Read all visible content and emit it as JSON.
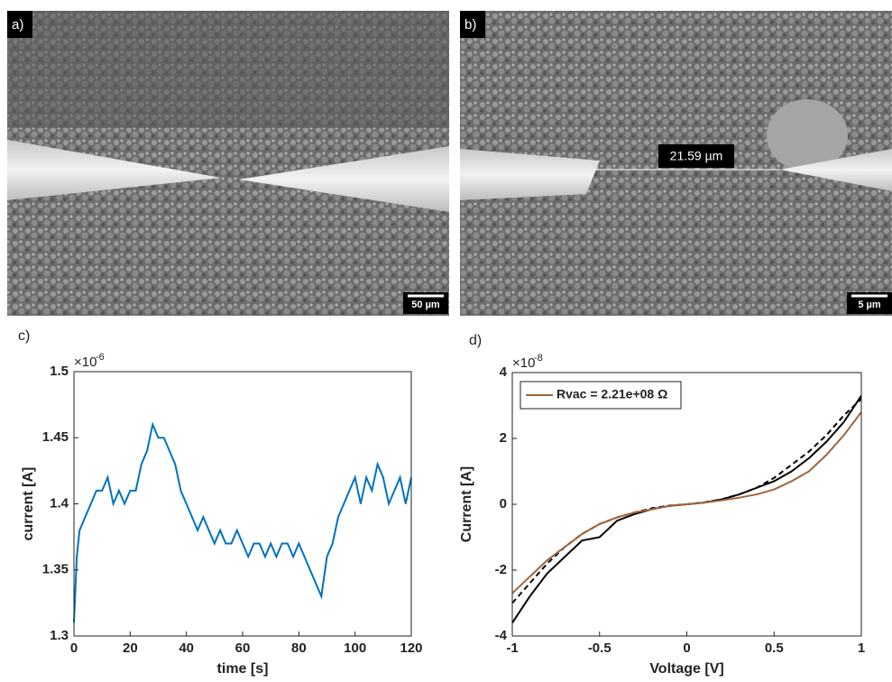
{
  "images": [
    {
      "label": "a)",
      "scale_bar": "50 µm"
    },
    {
      "label": "b)",
      "scale_bar": "5 µm",
      "measurement": "21.59 µm"
    }
  ],
  "chart_data": [
    {
      "type": "line",
      "label": "c)",
      "xlabel": "time [s]",
      "ylabel": "current [A]",
      "y_multiplier": {
        "base": "×10",
        "exponent": "-6"
      },
      "x": [
        0,
        1,
        2,
        4,
        6,
        8,
        10,
        12,
        14,
        16,
        18,
        20,
        22,
        24,
        26,
        28,
        30,
        32,
        34,
        36,
        38,
        40,
        42,
        44,
        46,
        48,
        50,
        52,
        54,
        56,
        58,
        60,
        62,
        64,
        66,
        68,
        70,
        72,
        74,
        76,
        78,
        80,
        82,
        84,
        86,
        88,
        90,
        92,
        94,
        96,
        98,
        100,
        102,
        104,
        106,
        108,
        110,
        112,
        114,
        116,
        118,
        120
      ],
      "series": [
        {
          "color": "#0072bd",
          "values": [
            1.31,
            1.36,
            1.38,
            1.39,
            1.4,
            1.41,
            1.41,
            1.42,
            1.4,
            1.41,
            1.4,
            1.41,
            1.41,
            1.43,
            1.44,
            1.46,
            1.45,
            1.45,
            1.44,
            1.43,
            1.41,
            1.4,
            1.39,
            1.38,
            1.39,
            1.38,
            1.37,
            1.38,
            1.37,
            1.37,
            1.38,
            1.37,
            1.36,
            1.37,
            1.37,
            1.36,
            1.37,
            1.36,
            1.37,
            1.37,
            1.36,
            1.37,
            1.36,
            1.35,
            1.34,
            1.33,
            1.36,
            1.37,
            1.39,
            1.4,
            1.41,
            1.42,
            1.4,
            1.42,
            1.41,
            1.43,
            1.42,
            1.4,
            1.41,
            1.42,
            1.4,
            1.42
          ]
        }
      ],
      "xlim": [
        0,
        120
      ],
      "xticks": [
        0,
        20,
        40,
        60,
        80,
        100,
        120
      ],
      "ylim": [
        1.3,
        1.5
      ],
      "yticks": [
        1.3,
        1.35,
        1.4,
        1.45,
        1.5
      ]
    },
    {
      "type": "line",
      "label": "d)",
      "xlabel": "Voltage [V]",
      "ylabel": "Current [A]",
      "y_multiplier": {
        "base": "×10",
        "exponent": "-8"
      },
      "x": [
        -1,
        -0.9,
        -0.8,
        -0.7,
        -0.6,
        -0.5,
        -0.4,
        -0.3,
        -0.2,
        -0.1,
        0,
        0.1,
        0.2,
        0.3,
        0.4,
        0.5,
        0.6,
        0.7,
        0.8,
        0.9,
        1
      ],
      "series": [
        {
          "color": "#000000",
          "dashed": false,
          "values": [
            -3.6,
            -2.8,
            -2.1,
            -1.6,
            -1.1,
            -1.0,
            -0.5,
            -0.3,
            -0.15,
            -0.05,
            0,
            0.05,
            0.15,
            0.3,
            0.5,
            0.7,
            1.0,
            1.4,
            1.9,
            2.5,
            3.3
          ]
        },
        {
          "color": "#000000",
          "dashed": true,
          "values": [
            -3.0,
            -2.4,
            -1.8,
            -1.3,
            -0.9,
            -0.6,
            -0.4,
            -0.25,
            -0.12,
            -0.04,
            0,
            0.06,
            0.15,
            0.3,
            0.5,
            0.8,
            1.2,
            1.6,
            2.1,
            2.7,
            3.2
          ]
        },
        {
          "name": "Rvac = 2.21e+08 Ω",
          "color": "#a0653c",
          "dashed": false,
          "values": [
            -2.7,
            -2.2,
            -1.7,
            -1.3,
            -0.9,
            -0.6,
            -0.4,
            -0.25,
            -0.15,
            -0.05,
            0,
            0.05,
            0.12,
            0.2,
            0.3,
            0.45,
            0.7,
            1.0,
            1.5,
            2.1,
            2.8
          ]
        }
      ],
      "legend": "upper left",
      "xlim": [
        -1,
        1
      ],
      "xticks": [
        -1,
        -0.5,
        0,
        0.5,
        1
      ],
      "ylim": [
        -4,
        4
      ],
      "yticks": [
        -4,
        -2,
        0,
        2,
        4
      ]
    }
  ]
}
